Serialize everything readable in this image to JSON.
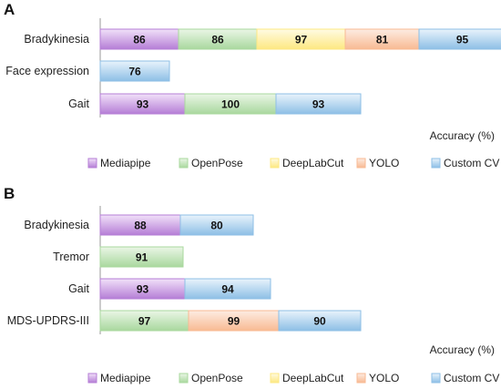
{
  "chart_data": [
    {
      "panel": "A",
      "type": "bar",
      "orientation": "horizontal",
      "stacked": true,
      "categories": [
        "Bradykinesia",
        "Face expression",
        "Gait"
      ],
      "series": [
        {
          "name": "Mediapipe",
          "values": [
            86,
            null,
            93
          ]
        },
        {
          "name": "OpenPose",
          "values": [
            86,
            null,
            100
          ]
        },
        {
          "name": "DeepLabCut",
          "values": [
            97,
            null,
            null
          ]
        },
        {
          "name": "YOLO",
          "values": [
            81,
            null,
            null
          ]
        },
        {
          "name": "Custom CV",
          "values": [
            95,
            76,
            93
          ]
        }
      ],
      "xlabel": "Accuracy (%)",
      "xlim": [
        0,
        450
      ],
      "legend_position": "bottom",
      "grid": false
    },
    {
      "panel": "B",
      "type": "bar",
      "orientation": "horizontal",
      "stacked": true,
      "categories": [
        "Bradykinesia",
        "Tremor",
        "Gait",
        "MDS-UPDRS-III"
      ],
      "series": [
        {
          "name": "Mediapipe",
          "values": [
            88,
            null,
            93,
            null
          ]
        },
        {
          "name": "OpenPose",
          "values": [
            null,
            91,
            null,
            97
          ]
        },
        {
          "name": "DeepLabCut",
          "values": [
            null,
            null,
            null,
            null
          ]
        },
        {
          "name": "YOLO",
          "values": [
            null,
            null,
            null,
            99
          ]
        },
        {
          "name": "Custom CV",
          "values": [
            80,
            null,
            94,
            90
          ]
        }
      ],
      "xlabel": "Accuracy (%)",
      "xlim": [
        0,
        400
      ],
      "legend_position": "bottom",
      "grid": false
    }
  ],
  "colors": {
    "Mediapipe": [
      "#b57ed6",
      "#f1e1f9"
    ],
    "OpenPose": [
      "#a9d89e",
      "#eaf6e6"
    ],
    "DeepLabCut": [
      "#fde882",
      "#fffbe3"
    ],
    "YOLO": [
      "#f8ba93",
      "#fdece2"
    ],
    "Custom CV": [
      "#8ebfe6",
      "#e8f3fc"
    ]
  }
}
